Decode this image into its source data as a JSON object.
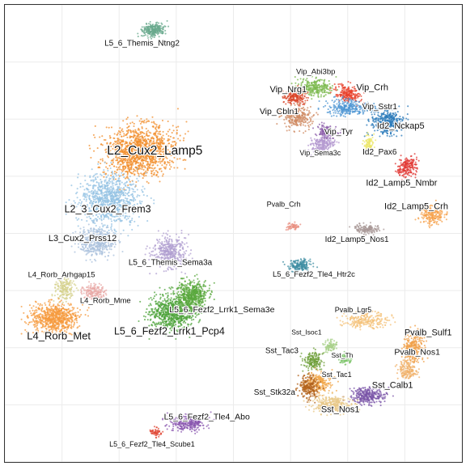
{
  "chart_data": {
    "type": "scatter",
    "title": "",
    "xlabel": "",
    "ylabel": "",
    "xlim": [
      0,
      100
    ],
    "ylim": [
      0,
      100
    ],
    "grid": true,
    "legend": "none",
    "series": [
      {
        "name": "L5_6_Themis_Ntng2",
        "color": "#6aaa8e",
        "x": 32.5,
        "y": 94.5,
        "sx": 2.2,
        "sy": 1.3,
        "angle": -10,
        "n": 260
      },
      {
        "name": "Vip_Abi3bp",
        "color": "#7cba4f",
        "x": 68.0,
        "y": 82.0,
        "sx": 3.6,
        "sy": 1.6,
        "angle": 0,
        "n": 260
      },
      {
        "name": "Vip_Crh",
        "color": "#e8432d",
        "x": 75.0,
        "y": 80.5,
        "sx": 2.5,
        "sy": 1.6,
        "angle": 20,
        "n": 220
      },
      {
        "name": "Vip_Nrg1",
        "color": "#d9452a",
        "x": 63.5,
        "y": 80.0,
        "sx": 2.2,
        "sy": 1.6,
        "angle": 0,
        "n": 200
      },
      {
        "name": "Vip_Sstr1",
        "color": "#4d96d3",
        "x": 75.0,
        "y": 77.5,
        "sx": 4.0,
        "sy": 1.5,
        "angle": 0,
        "n": 260
      },
      {
        "name": "Vip_Cbln1",
        "color": "#cf8a62",
        "x": 64.0,
        "y": 75.5,
        "sx": 2.8,
        "sy": 2.2,
        "angle": 0,
        "n": 260
      },
      {
        "name": "Id2_Nckap5",
        "color": "#2a7ab9",
        "x": 83.5,
        "y": 74.5,
        "sx": 3.0,
        "sy": 2.8,
        "angle": 0,
        "n": 360
      },
      {
        "name": "Vip_Tyr",
        "color": "#8a5aa8",
        "x": 70.5,
        "y": 72.0,
        "sx": 2.0,
        "sy": 1.4,
        "angle": 0,
        "n": 160
      },
      {
        "name": "Vip_Sema3c",
        "color": "#b49ad0",
        "x": 69.5,
        "y": 69.5,
        "sx": 2.3,
        "sy": 1.5,
        "angle": 0,
        "n": 200
      },
      {
        "name": "Id2_Pax6",
        "color": "#ece76a",
        "x": 79.5,
        "y": 69.5,
        "sx": 1.0,
        "sy": 1.6,
        "angle": 0,
        "n": 90
      },
      {
        "name": "Id2_Lamp5_Nmbr",
        "color": "#e13a36",
        "x": 88.0,
        "y": 64.5,
        "sx": 2.2,
        "sy": 1.8,
        "angle": -30,
        "n": 200
      },
      {
        "name": "Id2_Lamp5_Crh",
        "color": "#f5a04a",
        "x": 93.5,
        "y": 54.0,
        "sx": 2.3,
        "sy": 2.0,
        "angle": 0,
        "n": 200
      },
      {
        "name": "Pvalb_Crh",
        "color": "#e88d7f",
        "x": 63.0,
        "y": 51.5,
        "sx": 1.3,
        "sy": 0.6,
        "angle": 0,
        "n": 50
      },
      {
        "name": "Id2_Lamp5_Nos1",
        "color": "#a89897",
        "x": 79.5,
        "y": 51.0,
        "sx": 2.6,
        "sy": 0.9,
        "angle": 0,
        "n": 140
      },
      {
        "name": "L5_6_Fezf2_Tle4_Htr2c",
        "color": "#3f8ea3",
        "x": 64.5,
        "y": 43.0,
        "sx": 2.4,
        "sy": 1.2,
        "angle": 0,
        "n": 170
      },
      {
        "name": "L2_Cux2_Lamp5",
        "color": "#f28e2b",
        "x": 29.5,
        "y": 68.0,
        "sx": 7.0,
        "sy": 4.8,
        "angle": -10,
        "n": 1300
      },
      {
        "name": "L2_3_Cux2_Frem3",
        "color": "#93c2e3",
        "x": 23.0,
        "y": 57.5,
        "sx": 6.0,
        "sy": 5.0,
        "angle": 0,
        "n": 900
      },
      {
        "name": "L3_Cux2_Prss12",
        "color": "#a9c0dc",
        "x": 20.0,
        "y": 48.0,
        "sx": 3.6,
        "sy": 3.0,
        "angle": 0,
        "n": 400
      },
      {
        "name": "L5_6_Themis_Sema3a",
        "color": "#b09fd0",
        "x": 36.0,
        "y": 46.0,
        "sx": 3.3,
        "sy": 3.0,
        "angle": 0,
        "n": 380
      },
      {
        "name": "L4_Rorb_Arhgap15",
        "color": "#d6d18d",
        "x": 13.0,
        "y": 38.0,
        "sx": 2.0,
        "sy": 2.2,
        "angle": 0,
        "n": 170
      },
      {
        "name": "L4_Rorb_Mme",
        "color": "#e8a8a6",
        "x": 19.5,
        "y": 37.0,
        "sx": 2.2,
        "sy": 1.7,
        "angle": 0,
        "n": 170
      },
      {
        "name": "L4_Rorb_Met",
        "color": "#f59a3c",
        "x": 11.0,
        "y": 31.5,
        "sx": 4.6,
        "sy": 3.0,
        "angle": 0,
        "n": 700
      },
      {
        "name": "L5_6_Fezf2_Lrrk1_Pcp4",
        "color": "#4ea33b",
        "x": 36.5,
        "y": 32.5,
        "sx": 4.5,
        "sy": 3.5,
        "angle": 0,
        "n": 760
      },
      {
        "name": "L5_6_Fezf2_Lrrk1_Sema3e",
        "color": "#5aa83e",
        "x": 41.0,
        "y": 36.5,
        "sx": 3.0,
        "sy": 2.8,
        "angle": 0,
        "n": 520
      },
      {
        "name": "L5_6_Fezf2_Tle4_Abo",
        "color": "#8b58b0",
        "x": 40.0,
        "y": 8.5,
        "sx": 3.6,
        "sy": 1.5,
        "angle": 0,
        "n": 280
      },
      {
        "name": "L5_6_Fezf2_Tle4_Scube1",
        "color": "#e24b3a",
        "x": 33.0,
        "y": 6.5,
        "sx": 1.1,
        "sy": 0.8,
        "angle": 0,
        "n": 60
      },
      {
        "name": "Pvalb_Lgr5",
        "color": "#f4c27a",
        "x": 79.0,
        "y": 31.0,
        "sx": 4.5,
        "sy": 1.5,
        "angle": 0,
        "n": 240
      },
      {
        "name": "Pvalb_Sulf1",
        "color": "#f0a04a",
        "x": 89.5,
        "y": 25.0,
        "sx": 2.2,
        "sy": 3.0,
        "angle": 0,
        "n": 260
      },
      {
        "name": "Pvalb_Nos1",
        "color": "#f0b068",
        "x": 88.0,
        "y": 20.0,
        "sx": 2.0,
        "sy": 2.0,
        "angle": 0,
        "n": 160
      },
      {
        "name": "Sst_Isoc1",
        "color": "#a8d08a",
        "x": 71.0,
        "y": 25.5,
        "sx": 1.4,
        "sy": 1.0,
        "angle": 0,
        "n": 90
      },
      {
        "name": "Sst_Th",
        "color": "#7cc36a",
        "x": 74.5,
        "y": 22.5,
        "sx": 1.2,
        "sy": 1.0,
        "angle": 0,
        "n": 70
      },
      {
        "name": "Sst_Tac3",
        "color": "#6f9f3b",
        "x": 67.5,
        "y": 22.0,
        "sx": 2.0,
        "sy": 1.8,
        "angle": 0,
        "n": 170
      },
      {
        "name": "Sst_Tac1",
        "color": "#f2a84c",
        "x": 69.0,
        "y": 17.5,
        "sx": 2.6,
        "sy": 2.0,
        "angle": 0,
        "n": 220
      },
      {
        "name": "Sst_Stk32a",
        "color": "#b3631c",
        "x": 66.5,
        "y": 16.5,
        "sx": 2.0,
        "sy": 2.2,
        "angle": 0,
        "n": 220
      },
      {
        "name": "Sst_Calb1",
        "color": "#7b55a8",
        "x": 79.5,
        "y": 14.5,
        "sx": 3.4,
        "sy": 1.6,
        "angle": 0,
        "n": 300
      },
      {
        "name": "Sst_Nos1",
        "color": "#e8c888",
        "x": 71.5,
        "y": 12.5,
        "sx": 3.8,
        "sy": 1.6,
        "angle": 0,
        "n": 320
      }
    ],
    "labels": [
      {
        "text": "L5_6_Themis_Ntng2",
        "x": 30.0,
        "y": 91.5,
        "size": 10
      },
      {
        "text": "Vip_Abi3bp",
        "x": 68.0,
        "y": 85.3,
        "size": 9.5
      },
      {
        "text": "Vip_Nrg1",
        "x": 62.0,
        "y": 81.4,
        "size": 11
      },
      {
        "text": "Vip_Crh",
        "x": 80.4,
        "y": 81.8,
        "size": 11
      },
      {
        "text": "Vip_Cbln1",
        "x": 60.0,
        "y": 76.6,
        "size": 10.5
      },
      {
        "text": "Vip_Sstr1",
        "x": 82.0,
        "y": 77.6,
        "size": 10
      },
      {
        "text": "Id2_Nckap5",
        "x": 86.6,
        "y": 73.4,
        "size": 11
      },
      {
        "text": "Vip_Tyr",
        "x": 73.0,
        "y": 72.2,
        "size": 10.5
      },
      {
        "text": "L2_Cux2_Lamp5",
        "x": 32.8,
        "y": 68.0,
        "size": 15.5
      },
      {
        "text": "Vip_Sema3c",
        "x": 69.0,
        "y": 67.5,
        "size": 9
      },
      {
        "text": "Id2_Pax6",
        "x": 82.0,
        "y": 67.7,
        "size": 10
      },
      {
        "text": "Id2_Lamp5_Nmbr",
        "x": 86.8,
        "y": 61.0,
        "size": 11
      },
      {
        "text": "L2_3_Cux2_Frem3",
        "x": 22.5,
        "y": 55.2,
        "size": 12.5
      },
      {
        "text": "Pvalb_Crh",
        "x": 61.0,
        "y": 56.3,
        "size": 9
      },
      {
        "text": "Id2_Lamp5_Crh",
        "x": 90.0,
        "y": 55.8,
        "size": 11
      },
      {
        "text": "Id2_Lamp5_Nos1",
        "x": 77.0,
        "y": 48.6,
        "size": 10
      },
      {
        "text": "L3_Cux2_Prss12",
        "x": 17.0,
        "y": 48.8,
        "size": 11
      },
      {
        "text": "L5_6_Themis_Sema3a",
        "x": 36.2,
        "y": 43.6,
        "size": 10
      },
      {
        "text": "L5_6_Fezf2_Tle4_Htr2c",
        "x": 67.6,
        "y": 41.0,
        "size": 9.5
      },
      {
        "text": "L4_Rorb_Arhgap15",
        "x": 12.4,
        "y": 40.9,
        "size": 9.5
      },
      {
        "text": "L4_Rorb_Mme",
        "x": 22.0,
        "y": 35.2,
        "size": 9.5
      },
      {
        "text": "L5_6_Fezf2_Lrrk1_Sema3e",
        "x": 47.5,
        "y": 33.2,
        "size": 10.5
      },
      {
        "text": "Pvalb_Lgr5",
        "x": 76.2,
        "y": 33.2,
        "size": 9
      },
      {
        "text": "L4_Rorb_Met",
        "x": 11.8,
        "y": 27.4,
        "size": 13
      },
      {
        "text": "L5_6_Fezf2_Lrrk1_Pcp4",
        "x": 36.0,
        "y": 28.5,
        "size": 12.5
      },
      {
        "text": "Pvalb_Sulf1",
        "x": 92.6,
        "y": 28.2,
        "size": 11
      },
      {
        "text": "Sst_Isoc1",
        "x": 66.0,
        "y": 28.3,
        "size": 8.5
      },
      {
        "text": "Pvalb_Nos1",
        "x": 90.2,
        "y": 23.9,
        "size": 10.5
      },
      {
        "text": "Sst_Tac3",
        "x": 60.6,
        "y": 24.3,
        "size": 10
      },
      {
        "text": "Sst_Th",
        "x": 73.8,
        "y": 23.2,
        "size": 8.5
      },
      {
        "text": "Sst_Tac1",
        "x": 72.6,
        "y": 19.0,
        "size": 9
      },
      {
        "text": "Sst_Calb1",
        "x": 84.8,
        "y": 16.7,
        "size": 11
      },
      {
        "text": "Sst_Stk32a",
        "x": 59.0,
        "y": 15.2,
        "size": 10
      },
      {
        "text": "Sst_Nos1",
        "x": 73.4,
        "y": 11.4,
        "size": 11
      },
      {
        "text": "L5_6_Fezf2_Tle4_Abo",
        "x": 44.2,
        "y": 9.8,
        "size": 10.5
      },
      {
        "text": "L5_6_Fezf2_Tle4_Scube1",
        "x": 32.2,
        "y": 3.8,
        "size": 9
      }
    ]
  }
}
